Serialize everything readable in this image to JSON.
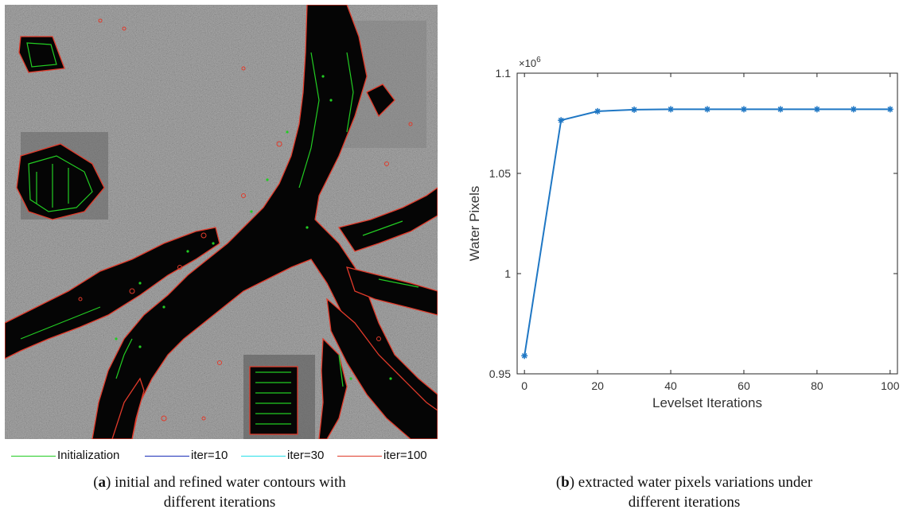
{
  "figure_a": {
    "legend": [
      {
        "label": "Initialization",
        "color": "#22cc22"
      },
      {
        "label": "iter=10",
        "color": "#1a2eb8"
      },
      {
        "label": "iter=30",
        "color": "#26e0e8"
      },
      {
        "label": "iter=100",
        "color": "#e03a2a"
      }
    ],
    "caption_letter": "a",
    "caption_text": ") initial and refined water contours with",
    "caption_line2": "different iterations"
  },
  "figure_b": {
    "caption_letter": "b",
    "caption_text": ") extracted water pixels variations under",
    "caption_line2": "different iterations"
  },
  "chart_data": {
    "type": "line",
    "xlabel": "Levelset Iterations",
    "ylabel": "Water Pixels",
    "scale_label": "×10",
    "scale_exponent": "6",
    "x": [
      0,
      10,
      20,
      30,
      40,
      50,
      60,
      70,
      80,
      90,
      100
    ],
    "series": [
      {
        "values": [
          0.959,
          1.0765,
          1.081,
          1.0818,
          1.082,
          1.082,
          1.082,
          1.082,
          1.082,
          1.082,
          1.082
        ],
        "color": "#1f77c4"
      }
    ],
    "xlim": [
      -2,
      102
    ],
    "ylim": [
      0.95,
      1.1
    ],
    "xticks": [
      0,
      20,
      40,
      60,
      80,
      100
    ],
    "yticks": [
      0.95,
      1,
      1.05,
      1.1
    ],
    "ytick_labels": [
      "0.95",
      "1",
      "1.05",
      "1.1"
    ],
    "grid": false,
    "marker": "asterisk"
  }
}
